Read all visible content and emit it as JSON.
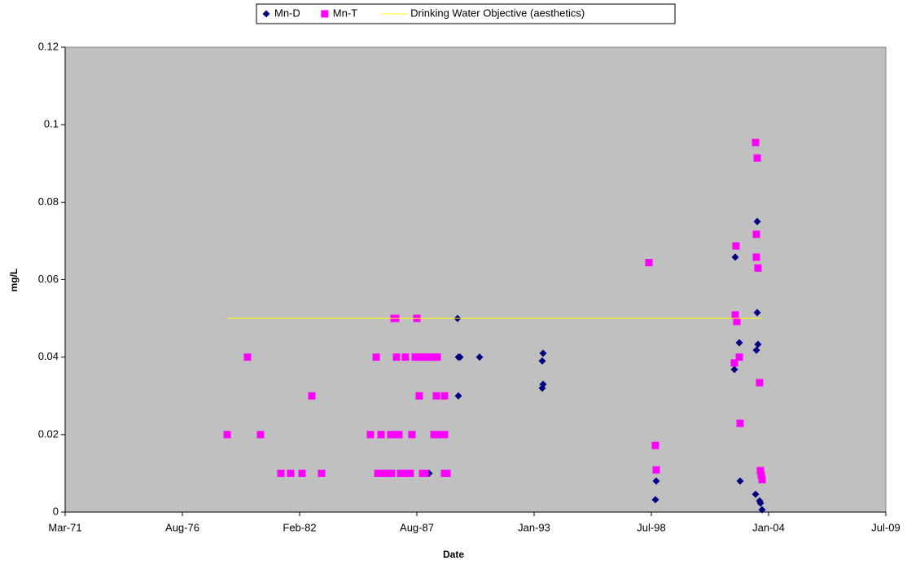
{
  "chart_data": {
    "type": "scatter",
    "x_label": "Date",
    "y_label": "mg/L",
    "xlim": [
      26000,
      40000
    ],
    "xticks": [
      {
        "value": 26000,
        "label": "Mar-71"
      },
      {
        "value": 28000,
        "label": "Aug-76"
      },
      {
        "value": 30000,
        "label": "Feb-82"
      },
      {
        "value": 32000,
        "label": "Aug-87"
      },
      {
        "value": 34000,
        "label": "Jan-93"
      },
      {
        "value": 36000,
        "label": "Jul-98"
      },
      {
        "value": 38000,
        "label": "Jan-04"
      },
      {
        "value": 40000,
        "label": "Jul-09"
      }
    ],
    "ylim": [
      0,
      0.12
    ],
    "yticks": [
      0,
      0.02,
      0.04,
      0.06,
      0.08,
      0.1,
      0.12
    ],
    "grid": false,
    "plot_background": "#c0c0c0",
    "legend": "top",
    "series": [
      {
        "name": "Mn-D",
        "color": "#000080",
        "marker": "diamond",
        "x": [
          32208,
          32694,
          32708,
          32736,
          32708,
          33069,
          34153,
          34139,
          34153,
          34139,
          36083,
          36069,
          37431,
          37417,
          37500,
          37514,
          37806,
          37806,
          37819,
          37792,
          37778,
          37847,
          37861,
          37889
        ],
        "values": [
          0.01,
          0.05,
          0.04,
          0.04,
          0.03,
          0.04,
          0.041,
          0.039,
          0.033,
          0.032,
          0.008,
          0.0032,
          0.0658,
          0.0368,
          0.0437,
          0.008,
          0.075,
          0.0515,
          0.0433,
          0.0418,
          0.0046,
          0.0029,
          0.0023,
          0.0006
        ]
      },
      {
        "name": "Mn-T",
        "color": "#ff00ff",
        "marker": "square",
        "x": [
          28764,
          29111,
          29333,
          29681,
          29847,
          30042,
          30208,
          30375,
          31208,
          31306,
          31333,
          31389,
          31416,
          31472,
          31528,
          31569,
          31555,
          31611,
          31639,
          31653,
          31639,
          31694,
          31722,
          31778,
          31833,
          31889,
          31805,
          31916,
          32000,
          31972,
          32055,
          32111,
          32166,
          32222,
          32278,
          32347,
          32041,
          32097,
          32139,
          32292,
          32347,
          32333,
          32472,
          32472,
          32472,
          32514,
          35958,
          36069,
          36083,
          37417,
          37431,
          37444,
          37458,
          37500,
          37514,
          37778,
          37806,
          37792,
          37792,
          37819,
          37847,
          37861,
          37875,
          37889
        ],
        "values": [
          0.02,
          0.04,
          0.02,
          0.01,
          0.01,
          0.01,
          0.03,
          0.01,
          0.02,
          0.04,
          0.01,
          0.02,
          0.01,
          0.01,
          0.01,
          0.01,
          0.02,
          0.05,
          0.05,
          0.04,
          0.02,
          0.02,
          0.01,
          0.01,
          0.01,
          0.01,
          0.04,
          0.02,
          0.05,
          0.04,
          0.04,
          0.04,
          0.04,
          0.04,
          0.04,
          0.04,
          0.03,
          0.01,
          0.01,
          0.02,
          0.02,
          0.03,
          0.03,
          0.02,
          0.01,
          0.01,
          0.0644,
          0.0172,
          0.0109,
          0.0385,
          0.0509,
          0.0687,
          0.0492,
          0.04,
          0.0229,
          0.0954,
          0.0914,
          0.0717,
          0.0658,
          0.063,
          0.0334,
          0.0107,
          0.0095,
          0.0084
        ]
      },
      {
        "name": "Drinking Water Objective (aesthetics)",
        "color": "#ffff00",
        "marker": "line",
        "x": [
          28764,
          37889
        ],
        "values": [
          0.05,
          0.05
        ]
      }
    ]
  }
}
